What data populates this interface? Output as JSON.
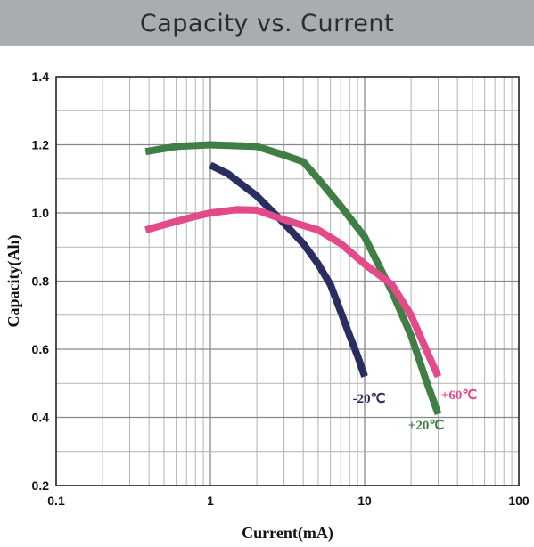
{
  "chart_data": {
    "type": "line",
    "title": "Capacity vs. Current",
    "xlabel": "Current(mA)",
    "ylabel": "Capacity(Ah)",
    "xscale": "log",
    "xlim": [
      0.1,
      100
    ],
    "ylim": [
      0.2,
      1.4
    ],
    "xticks": [
      "0.1",
      "1",
      "10",
      "100"
    ],
    "yticks": [
      "0.2",
      "0.4",
      "0.6",
      "0.8",
      "1.0",
      "1.2",
      "1.4"
    ],
    "grid": true,
    "series": [
      {
        "name": "+20℃",
        "color": "#3f7f45",
        "points": [
          [
            0.38,
            1.18
          ],
          [
            0.6,
            1.195
          ],
          [
            1.0,
            1.2
          ],
          [
            2.0,
            1.195
          ],
          [
            3.0,
            1.17
          ],
          [
            4.0,
            1.15
          ],
          [
            5.0,
            1.1
          ],
          [
            7.0,
            1.02
          ],
          [
            10.0,
            0.93
          ],
          [
            15.0,
            0.77
          ],
          [
            20.0,
            0.64
          ],
          [
            25.0,
            0.51
          ],
          [
            30.0,
            0.41
          ]
        ]
      },
      {
        "name": "-20℃",
        "color": "#2a2d60",
        "points": [
          [
            1.0,
            1.14
          ],
          [
            1.3,
            1.115
          ],
          [
            2.0,
            1.05
          ],
          [
            3.0,
            0.97
          ],
          [
            4.0,
            0.91
          ],
          [
            5.0,
            0.85
          ],
          [
            6.0,
            0.79
          ],
          [
            7.0,
            0.71
          ],
          [
            8.0,
            0.64
          ],
          [
            9.0,
            0.58
          ],
          [
            10.0,
            0.52
          ]
        ]
      },
      {
        "name": "+60℃",
        "color": "#e24a8a",
        "points": [
          [
            0.38,
            0.95
          ],
          [
            0.6,
            0.975
          ],
          [
            0.8,
            0.99
          ],
          [
            1.0,
            1.0
          ],
          [
            1.5,
            1.01
          ],
          [
            2.0,
            1.008
          ],
          [
            3.0,
            0.98
          ],
          [
            5.0,
            0.95
          ],
          [
            7.0,
            0.91
          ],
          [
            10.0,
            0.85
          ],
          [
            15.0,
            0.79
          ],
          [
            20.0,
            0.7
          ],
          [
            25.0,
            0.6
          ],
          [
            30.0,
            0.52
          ]
        ]
      }
    ]
  }
}
